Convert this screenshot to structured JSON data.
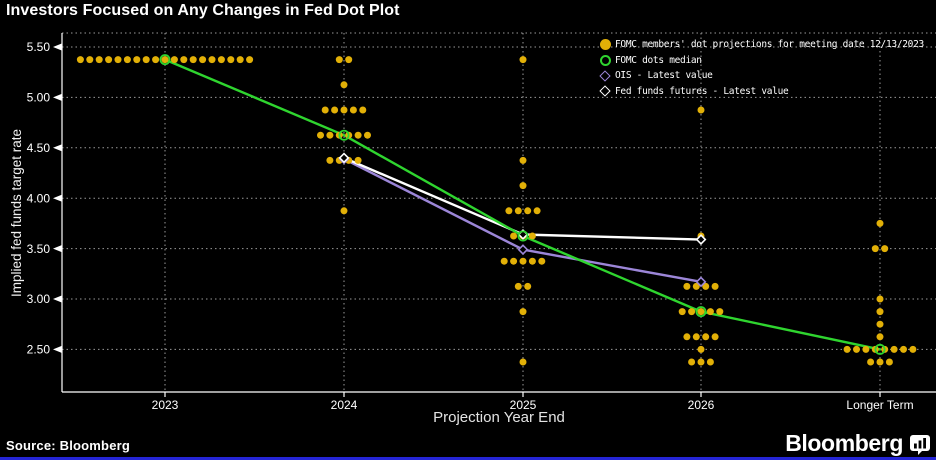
{
  "title": "Investors Focused on Any Changes in Fed Dot Plot",
  "source": "Source: Bloomberg",
  "logo": "Bloomberg",
  "colors": {
    "background": "#000000",
    "yellow": "#E2B007",
    "green": "#2FD52F",
    "purple": "#9C86D8",
    "white": "#FFFFFF",
    "grid": "#9A9A9A",
    "axis": "#FFFFFF",
    "blue_bar": "#2525D6"
  },
  "chart_data": {
    "type": "scatter",
    "title": "Investors Focused on Any Changes in Fed Dot Plot",
    "xlabel": "Projection Year End",
    "ylabel": "Implied fed funds target rate",
    "x_categories": [
      "2023",
      "2024",
      "2025",
      "2026",
      "Longer Term"
    ],
    "y_ticks": [
      5.5,
      5.0,
      4.5,
      4.0,
      3.5,
      3.0,
      2.5
    ],
    "y_tick_labels": [
      "5.50",
      "5.00",
      "4.50",
      "4.00",
      "3.50",
      "3.00",
      "2.50"
    ],
    "ylim": [
      2.15,
      5.64
    ],
    "grid": "dotted",
    "legend_position": "top-right",
    "legend": [
      {
        "label": "FOMC members' dot projections for meeting date 12/13/2023",
        "marker": "filled-circle",
        "color": "#E2B007"
      },
      {
        "label": "FOMC dots median",
        "marker": "open-circle",
        "color": "#2FD52F"
      },
      {
        "label": "OIS - Latest value",
        "marker": "open-diamond",
        "color": "#9C86D8"
      },
      {
        "label": "Fed funds futures - Latest value",
        "marker": "open-diamond",
        "color": "#FFFFFF"
      }
    ],
    "fomc_dots": [
      {
        "category": "2023",
        "levels": [
          {
            "rate": 5.375,
            "count": 19
          }
        ]
      },
      {
        "category": "2024",
        "levels": [
          {
            "rate": 5.375,
            "count": 2
          },
          {
            "rate": 5.125,
            "count": 1
          },
          {
            "rate": 4.875,
            "count": 5
          },
          {
            "rate": 4.625,
            "count": 6
          },
          {
            "rate": 4.375,
            "count": 4
          },
          {
            "rate": 3.875,
            "count": 1
          }
        ]
      },
      {
        "category": "2025",
        "levels": [
          {
            "rate": 5.375,
            "count": 1
          },
          {
            "rate": 4.375,
            "count": 1
          },
          {
            "rate": 4.125,
            "count": 1
          },
          {
            "rate": 3.875,
            "count": 4
          },
          {
            "rate": 3.625,
            "count": 3
          },
          {
            "rate": 3.375,
            "count": 5
          },
          {
            "rate": 3.125,
            "count": 2
          },
          {
            "rate": 2.875,
            "count": 1
          },
          {
            "rate": 2.375,
            "count": 1
          }
        ]
      },
      {
        "category": "2026",
        "levels": [
          {
            "rate": 4.875,
            "count": 1
          },
          {
            "rate": 3.625,
            "count": 1
          },
          {
            "rate": 3.125,
            "count": 4
          },
          {
            "rate": 2.875,
            "count": 5
          },
          {
            "rate": 2.625,
            "count": 4
          },
          {
            "rate": 2.5,
            "count": 1
          },
          {
            "rate": 2.375,
            "count": 3
          }
        ]
      },
      {
        "category": "Longer Term",
        "levels": [
          {
            "rate": 3.75,
            "count": 1
          },
          {
            "rate": 3.5,
            "count": 2
          },
          {
            "rate": 3.0,
            "count": 1
          },
          {
            "rate": 2.875,
            "count": 1
          },
          {
            "rate": 2.75,
            "count": 1
          },
          {
            "rate": 2.625,
            "count": 1
          },
          {
            "rate": 2.5,
            "count": 8
          },
          {
            "rate": 2.375,
            "count": 3
          }
        ]
      }
    ],
    "series": [
      {
        "name": "FOMC dots median",
        "color": "#2FD52F",
        "marker": "open-circle",
        "x": [
          "2023",
          "2024",
          "2025",
          "2026",
          "Longer Term"
        ],
        "values": [
          5.375,
          4.625,
          3.625,
          2.875,
          2.5
        ]
      },
      {
        "name": "OIS - Latest value",
        "color": "#9C86D8",
        "marker": "open-diamond",
        "x": [
          "2024",
          "2025",
          "2026"
        ],
        "values": [
          4.39,
          3.49,
          3.17
        ]
      },
      {
        "name": "Fed funds futures - Latest value",
        "color": "#FFFFFF",
        "marker": "open-diamond",
        "x": [
          "2024",
          "2025",
          "2026"
        ],
        "values": [
          4.4,
          3.64,
          3.59
        ]
      }
    ]
  }
}
